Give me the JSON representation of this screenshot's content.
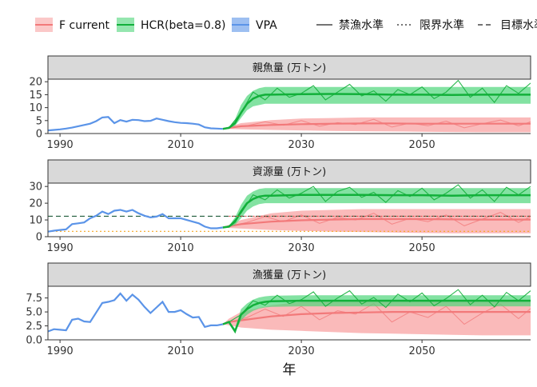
{
  "colors": {
    "vpa": "#5b94e8",
    "hcr": "#12b03a",
    "hcr_band": "#4fd67a",
    "fcur": "#f2797a",
    "fcur_band": "#f8a3a3",
    "ban": "#f5a623",
    "target": "#1f5c3a",
    "limit": "#d44"
  },
  "legend": {
    "fill_items": [
      {
        "label": "F current",
        "key": "fcur"
      },
      {
        "label": "HCR(beta=0.8)",
        "key": "hcr"
      },
      {
        "label": "VPA",
        "key": "vpa"
      }
    ],
    "line_items": [
      {
        "label": "禁漁水準",
        "dash": "solid"
      },
      {
        "label": "限界水準",
        "dash": "dotted"
      },
      {
        "label": "目標水準",
        "dash": "dashed"
      }
    ]
  },
  "xlabel": "年",
  "chart_data": [
    {
      "type": "line",
      "title": "親魚量 (万トン)",
      "xlim": [
        1988,
        2068
      ],
      "ylim": [
        0,
        21
      ],
      "yticks": [
        0,
        5,
        10,
        15,
        20
      ],
      "ytick_labels": [
        "0",
        "5",
        "10",
        "15",
        "20"
      ],
      "xticks": [
        1990,
        2010,
        2030,
        2050
      ],
      "vpa": {
        "x": [
          1988,
          1989,
          1990,
          1991,
          1992,
          1993,
          1994,
          1995,
          1996,
          1997,
          1998,
          1999,
          2000,
          2001,
          2002,
          2003,
          2004,
          2005,
          2006,
          2007,
          2008,
          2009,
          2010,
          2011,
          2012,
          2013,
          2014,
          2015,
          2016,
          2017
        ],
        "y": [
          1.2,
          1.4,
          1.6,
          1.9,
          2.3,
          2.8,
          3.3,
          3.8,
          4.8,
          6.2,
          6.4,
          4.0,
          5.2,
          4.6,
          5.3,
          5.2,
          4.8,
          4.9,
          5.8,
          5.3,
          4.8,
          4.4,
          4.1,
          4.0,
          3.8,
          3.5,
          2.4,
          2.0,
          1.9,
          1.8
        ]
      },
      "hcr_median": {
        "x": [
          2017,
          2018,
          2019,
          2020,
          2021,
          2022,
          2023,
          2024,
          2025,
          2030,
          2035,
          2040,
          2045,
          2050,
          2055,
          2060,
          2065,
          2068
        ],
        "y": [
          1.8,
          2.2,
          4.0,
          8.0,
          11.5,
          13.5,
          14.5,
          15.0,
          15.0,
          15.2,
          15.3,
          15.2,
          15.0,
          15.0,
          14.9,
          15.0,
          15.0,
          15.0
        ]
      },
      "hcr_band": {
        "lower": [
          1.8,
          2.0,
          3.0,
          6.0,
          9.0,
          10.5,
          11.0,
          11.5,
          11.5,
          11.5,
          11.5,
          11.5,
          11.5,
          11.5,
          11.5,
          11.5,
          11.5,
          11.5
        ],
        "upper": [
          1.8,
          2.5,
          5.5,
          11.0,
          14.5,
          16.5,
          17.5,
          18.0,
          18.0,
          18.0,
          18.0,
          18.0,
          18.0,
          18.0,
          18.0,
          18.0,
          18.0,
          18.0
        ]
      },
      "hcr_sample": {
        "x": [
          2018,
          2020,
          2022,
          2024,
          2026,
          2028,
          2030,
          2032,
          2034,
          2036,
          2038,
          2040,
          2042,
          2044,
          2046,
          2048,
          2050,
          2052,
          2054,
          2056,
          2058,
          2060,
          2062,
          2064,
          2066,
          2068
        ],
        "y": [
          2.2,
          8.0,
          16.0,
          13.0,
          17.5,
          14.0,
          15.5,
          18.5,
          13.0,
          16.0,
          19.0,
          14.5,
          16.5,
          12.5,
          17.0,
          15.0,
          18.0,
          13.5,
          16.0,
          20.5,
          14.0,
          17.5,
          12.0,
          18.5,
          15.5,
          19.5
        ]
      },
      "fcur_median": {
        "x": [
          2017,
          2018,
          2020,
          2025,
          2030,
          2035,
          2040,
          2045,
          2050,
          2055,
          2060,
          2065,
          2068
        ],
        "y": [
          1.8,
          2.2,
          2.8,
          3.3,
          3.6,
          3.8,
          3.9,
          3.9,
          3.8,
          3.8,
          3.8,
          3.8,
          3.8
        ]
      },
      "fcur_band": {
        "lower": [
          1.8,
          1.8,
          1.6,
          1.4,
          1.2,
          1.0,
          0.9,
          0.8,
          0.7,
          0.6,
          0.5,
          0.5,
          0.5
        ],
        "upper": [
          1.8,
          2.6,
          4.0,
          5.2,
          5.8,
          6.0,
          6.2,
          6.2,
          6.2,
          6.2,
          6.2,
          6.2,
          6.2
        ]
      },
      "fcur_sample": {
        "x": [
          2018,
          2021,
          2024,
          2027,
          2030,
          2033,
          2036,
          2039,
          2042,
          2045,
          2048,
          2051,
          2054,
          2057,
          2060,
          2063,
          2066,
          2068
        ],
        "y": [
          2.2,
          3.0,
          4.5,
          3.2,
          5.0,
          2.8,
          4.2,
          3.5,
          5.5,
          2.5,
          4.0,
          3.0,
          4.8,
          2.2,
          3.8,
          5.2,
          3.0,
          4.5
        ]
      },
      "hlines": []
    },
    {
      "type": "line",
      "title": "資源量 (万トン)",
      "xlim": [
        1988,
        2068
      ],
      "ylim": [
        0,
        32
      ],
      "yticks": [
        0,
        10,
        20,
        30
      ],
      "ytick_labels": [
        "0",
        "10",
        "20",
        "30"
      ],
      "xticks": [
        1990,
        2010,
        2030,
        2050
      ],
      "vpa": {
        "x": [
          1988,
          1989,
          1990,
          1991,
          1992,
          1993,
          1994,
          1995,
          1996,
          1997,
          1998,
          1999,
          2000,
          2001,
          2002,
          2003,
          2004,
          2005,
          2006,
          2007,
          2008,
          2009,
          2010,
          2011,
          2012,
          2013,
          2014,
          2015,
          2016,
          2017
        ],
        "y": [
          3.0,
          3.6,
          4.0,
          4.4,
          7.5,
          8.0,
          8.5,
          11.0,
          12.5,
          15.0,
          13.5,
          15.5,
          16.0,
          15.0,
          16.0,
          14.0,
          12.5,
          11.5,
          12.0,
          13.5,
          11.0,
          11.0,
          11.0,
          10.0,
          9.0,
          8.0,
          6.0,
          5.0,
          5.0,
          5.5
        ]
      },
      "hcr_median": {
        "x": [
          2017,
          2018,
          2019,
          2020,
          2021,
          2022,
          2023,
          2024,
          2025,
          2030,
          2035,
          2040,
          2045,
          2050,
          2055,
          2060,
          2065,
          2068
        ],
        "y": [
          5.5,
          6.0,
          9.0,
          15.0,
          20.0,
          22.5,
          24.0,
          24.5,
          24.5,
          25.0,
          25.0,
          25.0,
          24.8,
          24.8,
          24.5,
          24.8,
          24.8,
          24.8
        ]
      },
      "hcr_band": {
        "lower": [
          5.5,
          5.8,
          7.0,
          11.0,
          15.5,
          18.0,
          19.5,
          20.0,
          20.0,
          20.0,
          20.0,
          20.0,
          20.0,
          20.0,
          20.0,
          20.0,
          20.0,
          20.0
        ],
        "upper": [
          5.5,
          6.5,
          11.5,
          19.0,
          24.5,
          27.0,
          28.5,
          29.0,
          29.0,
          29.0,
          29.0,
          29.0,
          29.0,
          29.0,
          29.0,
          29.0,
          29.0,
          29.0
        ]
      },
      "hcr_sample": {
        "x": [
          2018,
          2020,
          2022,
          2024,
          2026,
          2028,
          2030,
          2032,
          2034,
          2036,
          2038,
          2040,
          2042,
          2044,
          2046,
          2048,
          2050,
          2052,
          2054,
          2056,
          2058,
          2060,
          2062,
          2064,
          2066,
          2068
        ],
        "y": [
          6.0,
          14.0,
          25.0,
          22.0,
          28.0,
          23.0,
          26.0,
          30.0,
          21.0,
          27.0,
          29.5,
          23.5,
          26.5,
          20.5,
          27.5,
          24.0,
          29.0,
          22.0,
          26.0,
          31.0,
          23.0,
          28.0,
          21.0,
          29.5,
          25.0,
          30.0
        ]
      },
      "fcur_median": {
        "x": [
          2017,
          2018,
          2020,
          2025,
          2030,
          2035,
          2040,
          2045,
          2050,
          2055,
          2060,
          2065,
          2068
        ],
        "y": [
          5.5,
          6.2,
          7.5,
          9.0,
          9.8,
          10.2,
          10.5,
          10.5,
          10.5,
          10.3,
          10.2,
          10.2,
          10.2
        ]
      },
      "fcur_band": {
        "lower": [
          5.5,
          5.2,
          4.8,
          4.0,
          3.5,
          3.0,
          2.8,
          2.5,
          2.2,
          2.0,
          2.0,
          2.0,
          2.0
        ],
        "upper": [
          5.5,
          7.0,
          10.0,
          14.0,
          15.5,
          16.0,
          16.5,
          16.5,
          16.5,
          16.5,
          16.5,
          16.5,
          16.5
        ]
      },
      "fcur_sample": {
        "x": [
          2018,
          2021,
          2024,
          2027,
          2030,
          2033,
          2036,
          2039,
          2042,
          2045,
          2048,
          2051,
          2054,
          2057,
          2060,
          2063,
          2066,
          2068
        ],
        "y": [
          6.2,
          8.5,
          12.0,
          9.0,
          13.0,
          8.0,
          11.5,
          10.0,
          14.0,
          7.5,
          11.0,
          9.0,
          13.0,
          6.5,
          10.5,
          14.5,
          8.5,
          12.0
        ]
      },
      "hlines": [
        {
          "y": 12.2,
          "key": "target",
          "dash": "dashed",
          "from_x": 1988
        },
        {
          "y": 12.2,
          "key": "limit",
          "dash": "dotted",
          "from_x": 2018
        },
        {
          "y": 3.2,
          "key": "ban",
          "dash": "dotted",
          "from_x": 1988
        }
      ]
    },
    {
      "type": "line",
      "title": "漁獲量 (万トン)",
      "xlim": [
        1988,
        2068
      ],
      "ylim": [
        0,
        9.6
      ],
      "yticks": [
        0,
        2.5,
        5,
        7.5
      ],
      "ytick_labels": [
        "0.0",
        "2.5",
        "5.0",
        "7.5"
      ],
      "xticks": [
        1990,
        2010,
        2030,
        2050
      ],
      "vpa": {
        "x": [
          1988,
          1989,
          1990,
          1991,
          1992,
          1993,
          1994,
          1995,
          1996,
          1997,
          1998,
          1999,
          2000,
          2001,
          2002,
          2003,
          2004,
          2005,
          2006,
          2007,
          2008,
          2009,
          2010,
          2011,
          2012,
          2013,
          2014,
          2015,
          2016,
          2017
        ],
        "y": [
          1.5,
          1.9,
          1.8,
          1.7,
          3.6,
          3.8,
          3.3,
          3.2,
          4.9,
          6.6,
          6.8,
          7.1,
          8.3,
          7.0,
          8.1,
          7.2,
          5.9,
          4.8,
          5.8,
          6.8,
          5.0,
          5.0,
          5.3,
          4.6,
          4.0,
          4.1,
          2.3,
          2.6,
          2.6,
          2.8
        ]
      },
      "hcr_median": {
        "x": [
          2017,
          2018,
          2019,
          2020,
          2021,
          2022,
          2023,
          2024,
          2025,
          2030,
          2035,
          2040,
          2045,
          2050,
          2055,
          2060,
          2065,
          2068
        ],
        "y": [
          2.8,
          3.2,
          1.5,
          4.5,
          5.5,
          6.2,
          6.6,
          6.8,
          6.9,
          7.0,
          7.0,
          7.0,
          7.0,
          7.0,
          7.0,
          7.0,
          7.0,
          7.0
        ]
      },
      "hcr_band": {
        "lower": [
          2.8,
          3.0,
          1.3,
          3.5,
          4.5,
          5.2,
          5.6,
          5.8,
          5.9,
          6.0,
          6.0,
          6.0,
          6.0,
          6.0,
          6.0,
          6.0,
          6.0,
          6.0
        ],
        "upper": [
          2.8,
          3.4,
          2.0,
          5.5,
          6.5,
          7.2,
          7.6,
          7.8,
          7.9,
          8.0,
          8.0,
          8.0,
          8.0,
          8.0,
          8.0,
          8.0,
          8.0,
          8.0
        ]
      },
      "hcr_sample": {
        "x": [
          2018,
          2020,
          2022,
          2024,
          2026,
          2028,
          2030,
          2032,
          2034,
          2036,
          2038,
          2040,
          2042,
          2044,
          2046,
          2048,
          2050,
          2052,
          2054,
          2056,
          2058,
          2060,
          2062,
          2064,
          2066,
          2068
        ],
        "y": [
          3.2,
          4.5,
          7.0,
          6.2,
          8.0,
          6.5,
          7.2,
          8.6,
          6.0,
          7.5,
          8.8,
          6.4,
          7.6,
          5.8,
          8.2,
          6.8,
          8.4,
          6.1,
          7.4,
          9.0,
          6.3,
          8.0,
          5.9,
          8.5,
          7.0,
          8.8
        ]
      },
      "fcur_median": {
        "x": [
          2017,
          2018,
          2020,
          2025,
          2030,
          2035,
          2040,
          2045,
          2050,
          2055,
          2060,
          2065,
          2068
        ],
        "y": [
          2.8,
          3.2,
          3.5,
          4.2,
          4.6,
          4.8,
          4.9,
          5.0,
          5.0,
          5.0,
          5.0,
          5.0,
          5.0
        ]
      },
      "fcur_band": {
        "lower": [
          2.8,
          2.6,
          2.2,
          1.8,
          1.6,
          1.4,
          1.2,
          1.1,
          1.0,
          0.9,
          0.8,
          0.8,
          0.8
        ],
        "upper": [
          2.8,
          3.8,
          5.0,
          6.2,
          6.8,
          7.0,
          7.2,
          7.2,
          7.2,
          7.2,
          7.2,
          7.2,
          7.2
        ]
      },
      "fcur_sample": {
        "x": [
          2018,
          2021,
          2024,
          2027,
          2030,
          2033,
          2036,
          2039,
          2042,
          2045,
          2048,
          2051,
          2054,
          2057,
          2060,
          2063,
          2066,
          2068
        ],
        "y": [
          3.2,
          4.0,
          5.5,
          4.2,
          6.0,
          3.6,
          5.2,
          4.6,
          6.5,
          3.2,
          5.0,
          4.0,
          6.0,
          2.8,
          4.8,
          6.4,
          3.8,
          5.6
        ]
      },
      "hlines": []
    }
  ]
}
